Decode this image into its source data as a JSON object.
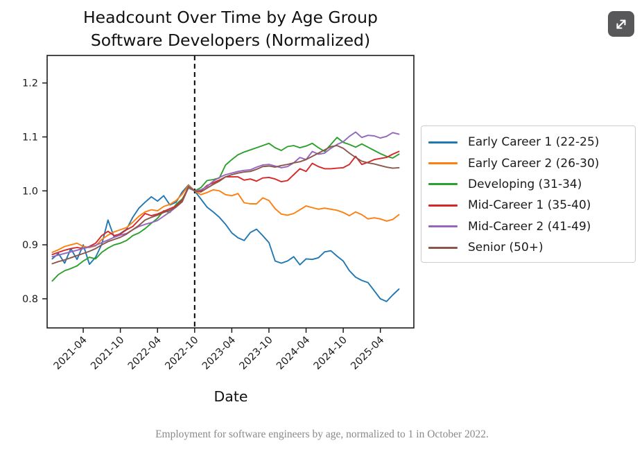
{
  "header": {
    "title_line1": "Headcount Over Time by Age Group",
    "title_line2": "Software Developers (Normalized)"
  },
  "toolbar": {
    "expand_icon": "expand-diagonal-arrows"
  },
  "caption": "Employment for software engineers by age, normalized to 1 in October 2022.",
  "chart_data": {
    "type": "line",
    "title": "Headcount Over Time by Age Group — Software Developers (Normalized)",
    "xlabel": "Date",
    "ylabel": "",
    "x_frequency": "monthly",
    "x_range": [
      "2020-11",
      "2025-07"
    ],
    "ylim": [
      0.746,
      1.251
    ],
    "y_ticks": [
      0.8,
      0.9,
      1.0,
      1.1,
      1.2
    ],
    "x_ticks": [
      {
        "label": "2021-04",
        "index": 5
      },
      {
        "label": "2021-10",
        "index": 11
      },
      {
        "label": "2022-04",
        "index": 17
      },
      {
        "label": "2022-10",
        "index": 23
      },
      {
        "label": "2023-04",
        "index": 29
      },
      {
        "label": "2023-10",
        "index": 35
      },
      {
        "label": "2024-04",
        "index": 41
      },
      {
        "label": "2024-10",
        "index": 47
      },
      {
        "label": "2025-04",
        "index": 53
      }
    ],
    "vline": {
      "label": "2022-10",
      "index": 23,
      "style": "dashed",
      "color": "#000000"
    },
    "grid": false,
    "legend_position": "outside-right",
    "series": [
      {
        "name": "Early Career 1 (22-25)",
        "color": "#1f77b4",
        "values": [
          0.874,
          0.884,
          0.866,
          0.893,
          0.873,
          0.9,
          0.864,
          0.877,
          0.901,
          0.946,
          0.914,
          0.921,
          0.929,
          0.951,
          0.968,
          0.979,
          0.989,
          0.981,
          0.991,
          0.974,
          0.979,
          0.998,
          1.011,
          1.0,
          0.985,
          0.97,
          0.961,
          0.951,
          0.938,
          0.922,
          0.913,
          0.908,
          0.923,
          0.929,
          0.917,
          0.904,
          0.87,
          0.866,
          0.87,
          0.878,
          0.863,
          0.874,
          0.873,
          0.876,
          0.887,
          0.889,
          0.879,
          0.87,
          0.852,
          0.84,
          0.834,
          0.83,
          0.815,
          0.8,
          0.795,
          0.807,
          0.818
        ]
      },
      {
        "name": "Early Career 2 (26-30)",
        "color": "#ff7f0e",
        "values": [
          0.886,
          0.891,
          0.897,
          0.9,
          0.903,
          0.897,
          0.895,
          0.898,
          0.91,
          0.918,
          0.924,
          0.928,
          0.932,
          0.942,
          0.953,
          0.961,
          0.965,
          0.963,
          0.971,
          0.975,
          0.982,
          0.994,
          1.01,
          1.0,
          0.993,
          0.997,
          1.002,
          1.0,
          0.993,
          0.991,
          0.995,
          0.978,
          0.976,
          0.976,
          0.987,
          0.982,
          0.967,
          0.957,
          0.955,
          0.958,
          0.965,
          0.972,
          0.969,
          0.966,
          0.968,
          0.966,
          0.964,
          0.96,
          0.954,
          0.961,
          0.956,
          0.948,
          0.95,
          0.948,
          0.944,
          0.947,
          0.956
        ]
      },
      {
        "name": "Developing (31-34)",
        "color": "#2ca02c",
        "values": [
          0.833,
          0.845,
          0.852,
          0.856,
          0.861,
          0.87,
          0.877,
          0.874,
          0.886,
          0.894,
          0.9,
          0.903,
          0.908,
          0.917,
          0.922,
          0.93,
          0.94,
          0.949,
          0.963,
          0.96,
          0.975,
          0.985,
          1.005,
          1.0,
          1.006,
          1.019,
          1.021,
          1.024,
          1.048,
          1.058,
          1.067,
          1.072,
          1.076,
          1.08,
          1.084,
          1.088,
          1.08,
          1.075,
          1.082,
          1.084,
          1.08,
          1.083,
          1.088,
          1.08,
          1.073,
          1.086,
          1.099,
          1.09,
          1.086,
          1.081,
          1.087,
          1.081,
          1.075,
          1.069,
          1.064,
          1.061,
          1.068
        ]
      },
      {
        "name": "Mid-Career 1 (35-40)",
        "color": "#d62728",
        "values": [
          0.882,
          0.886,
          0.89,
          0.893,
          0.895,
          0.893,
          0.897,
          0.903,
          0.917,
          0.925,
          0.917,
          0.92,
          0.928,
          0.934,
          0.946,
          0.958,
          0.954,
          0.957,
          0.962,
          0.967,
          0.972,
          0.983,
          1.008,
          1.0,
          1.0,
          1.01,
          1.015,
          1.02,
          1.026,
          1.026,
          1.026,
          1.02,
          1.022,
          1.018,
          1.024,
          1.025,
          1.022,
          1.017,
          1.019,
          1.03,
          1.041,
          1.036,
          1.051,
          1.045,
          1.041,
          1.041,
          1.042,
          1.043,
          1.049,
          1.064,
          1.049,
          1.053,
          1.058,
          1.06,
          1.062,
          1.068,
          1.073
        ]
      },
      {
        "name": "Mid-Career 2 (41-49)",
        "color": "#9467bd",
        "values": [
          0.878,
          0.881,
          0.884,
          0.887,
          0.89,
          0.893,
          0.896,
          0.899,
          0.904,
          0.909,
          0.914,
          0.918,
          0.921,
          0.928,
          0.934,
          0.938,
          0.941,
          0.945,
          0.953,
          0.961,
          0.97,
          0.98,
          1.006,
          1.0,
          1.002,
          1.008,
          1.018,
          1.025,
          1.03,
          1.033,
          1.036,
          1.038,
          1.039,
          1.044,
          1.048,
          1.049,
          1.046,
          1.043,
          1.045,
          1.052,
          1.062,
          1.058,
          1.073,
          1.068,
          1.07,
          1.079,
          1.086,
          1.091,
          1.101,
          1.109,
          1.099,
          1.103,
          1.102,
          1.098,
          1.101,
          1.108,
          1.105
        ]
      },
      {
        "name": "Senior (50+)",
        "color": "#8c564b",
        "values": [
          0.865,
          0.869,
          0.872,
          0.876,
          0.88,
          0.884,
          0.888,
          0.893,
          0.9,
          0.906,
          0.91,
          0.914,
          0.92,
          0.928,
          0.936,
          0.946,
          0.951,
          0.955,
          0.96,
          0.964,
          0.97,
          0.98,
          1.008,
          1.0,
          0.998,
          1.005,
          1.012,
          1.018,
          1.026,
          1.03,
          1.033,
          1.035,
          1.036,
          1.04,
          1.045,
          1.046,
          1.044,
          1.047,
          1.049,
          1.052,
          1.054,
          1.058,
          1.064,
          1.07,
          1.076,
          1.082,
          1.084,
          1.079,
          1.07,
          1.062,
          1.055,
          1.052,
          1.05,
          1.047,
          1.044,
          1.042,
          1.043
        ]
      }
    ]
  }
}
